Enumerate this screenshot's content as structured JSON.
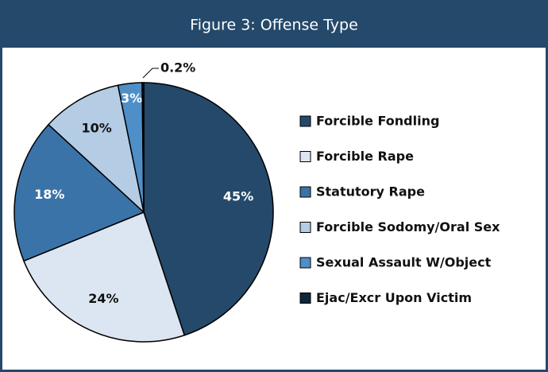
{
  "chart_data": {
    "type": "pie",
    "title": "Figure 3: Offense Type",
    "categories": [
      "Forcible Fondling",
      "Forcible Rape",
      "Statutory Rape",
      "Forcible Sodomy/Oral Sex",
      "Sexual Assault W/Object",
      "Ejac/Excr Upon Victim"
    ],
    "values": [
      45,
      24,
      18,
      10,
      3,
      0.2
    ],
    "value_labels": [
      "45%",
      "24%",
      "18%",
      "10%",
      "3%",
      "0.2%"
    ],
    "colors": [
      "#24496a",
      "#dce6f2",
      "#3a73a8",
      "#b4cde4",
      "#4f8fc8",
      "#10263d"
    ],
    "legend": "right"
  }
}
